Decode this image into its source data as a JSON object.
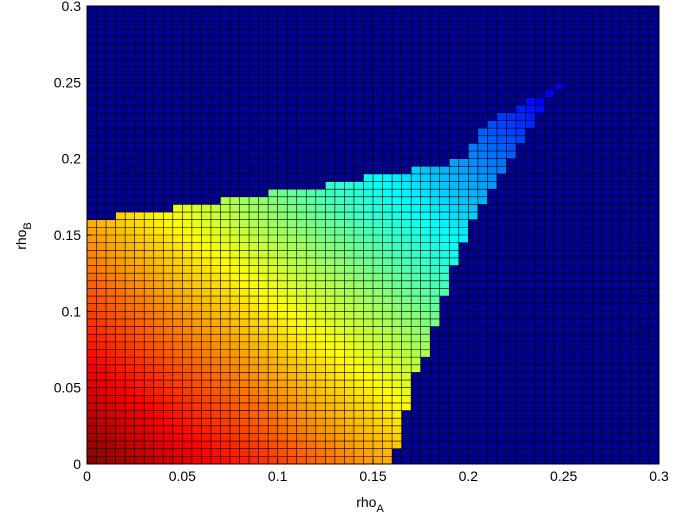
{
  "chart_data": {
    "type": "heatmap",
    "title": "",
    "xlabel": {
      "base": "rho",
      "subscript": "A"
    },
    "ylabel": {
      "base": "rho",
      "subscript": "B"
    },
    "xlim": [
      0,
      0.3
    ],
    "ylim": [
      0,
      0.3
    ],
    "x_ticks": [
      "0",
      "0.05",
      "0.1",
      "0.15",
      "0.2",
      "0.25",
      "0.3"
    ],
    "y_ticks": [
      "0",
      "0.05",
      "0.1",
      "0.15",
      "0.2",
      "0.25",
      "0.3"
    ],
    "grid_step": 0.005,
    "grid_lines": true,
    "colormap": "jet",
    "background_color": "#00008f",
    "cell_edge_color": "#000000",
    "region_boundary": {
      "description": "upper rho_B limit of the colored (feasible) region as a function of rho_A",
      "rho_A": [
        0.0,
        0.02,
        0.035,
        0.06,
        0.08,
        0.11,
        0.14,
        0.155,
        0.19,
        0.2,
        0.205,
        0.215,
        0.225,
        0.235,
        0.245,
        0.25
      ],
      "rho_B_max": [
        0.16,
        0.163,
        0.165,
        0.17,
        0.175,
        0.18,
        0.185,
        0.19,
        0.195,
        0.205,
        0.215,
        0.225,
        0.235,
        0.24,
        0.245,
        0.25
      ]
    },
    "region_right_edge": {
      "description": "right-side limit of the colored region (max rho_A) as a function of rho_B",
      "rho_B": [
        0.0,
        0.02,
        0.05,
        0.065,
        0.08,
        0.1,
        0.12,
        0.14,
        0.155,
        0.165,
        0.175,
        0.185,
        0.195,
        0.205,
        0.215,
        0.225,
        0.235,
        0.245,
        0.25
      ],
      "rho_A_max": [
        0.16,
        0.165,
        0.17,
        0.175,
        0.18,
        0.185,
        0.19,
        0.195,
        0.2,
        0.205,
        0.21,
        0.215,
        0.22,
        0.225,
        0.23,
        0.235,
        0.24,
        0.245,
        0.25
      ]
    },
    "color_field": {
      "description": "colormap value rises with rho_A + rho_B: dark red at origin, orange/yellow mid, green/cyan near (0.2,0.2), blue at (0.25,0.25)",
      "min_sum": 0.0,
      "max_sum": 0.5
    }
  }
}
